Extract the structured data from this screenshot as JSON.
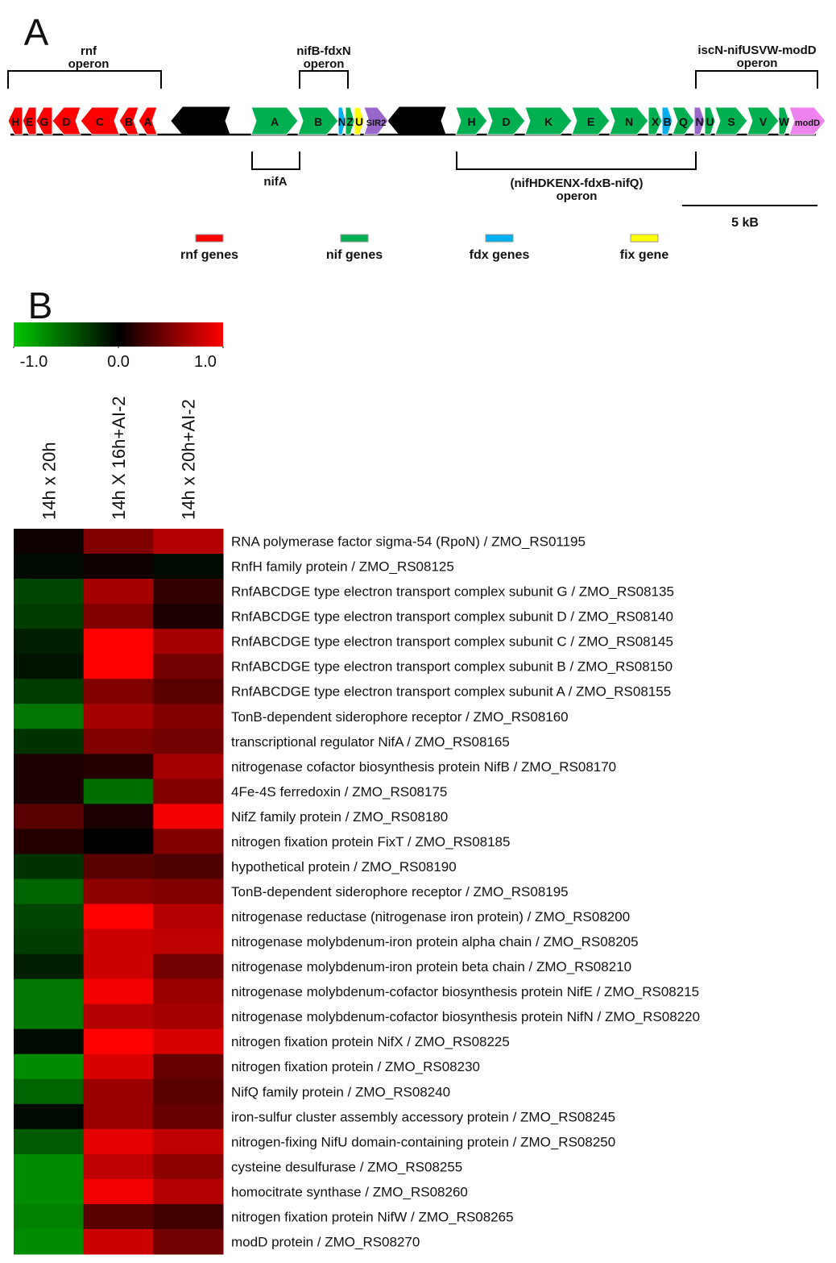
{
  "panel_a": {
    "label": "A",
    "operon_labels": [
      [
        "rnf",
        "operon"
      ],
      [
        "nifB-fdxN",
        "operon"
      ],
      [
        "iscN-nifUSVW-modD",
        "operon"
      ],
      [
        "nifA"
      ],
      [
        "(nifHDKENX-fdxB-nifQ)",
        "operon"
      ]
    ],
    "genes": [
      "H",
      "E",
      "G",
      "D",
      "C",
      "B",
      "A",
      "A",
      "B",
      "N",
      "Z",
      "U",
      "SIR2",
      "H",
      "D",
      "K",
      "E",
      "N",
      "X",
      "B",
      "Q",
      "N",
      "U",
      "S",
      "V",
      "W",
      "modD"
    ],
    "scale_bar": "5 kB",
    "legend": [
      {
        "name": "rnf genes",
        "color": "#ff0000"
      },
      {
        "name": "nif genes",
        "color": "#00b050"
      },
      {
        "name": "fdx genes",
        "color": "#00b0f0"
      },
      {
        "name": "fix gene",
        "color": "#ffff00"
      }
    ]
  },
  "chart_data": {
    "type": "heatmap",
    "panel_label": "B",
    "x_categories": [
      "14h x 20h",
      "14h X 16h+AI-2",
      "14h x 20h+AI-2"
    ],
    "y_categories": [
      "RNA polymerase factor sigma-54 (RpoN) / ZMO_RS01195",
      "RnfH family protein / ZMO_RS08125",
      "RnfABCDGE type electron transport complex subunit G / ZMO_RS08135",
      "RnfABCDGE type electron transport complex subunit D / ZMO_RS08140",
      "RnfABCDGE type electron transport complex subunit C / ZMO_RS08145",
      "RnfABCDGE type electron transport complex subunit B / ZMO_RS08150",
      "RnfABCDGE type electron transport complex subunit A / ZMO_RS08155",
      "TonB-dependent siderophore receptor / ZMO_RS08160",
      "transcriptional regulator NifA / ZMO_RS08165",
      "nitrogenase cofactor biosynthesis protein NifB / ZMO_RS08170",
      "4Fe-4S ferredoxin / ZMO_RS08175",
      "NifZ family protein / ZMO_RS08180",
      "nitrogen fixation protein FixT / ZMO_RS08185",
      "hypothetical protein / ZMO_RS08190",
      "TonB-dependent siderophore receptor / ZMO_RS08195",
      "nitrogenase reductase (nitrogenase iron protein) / ZMO_RS08200",
      "nitrogenase molybdenum-iron protein alpha chain / ZMO_RS08205",
      "nitrogenase molybdenum-iron protein beta chain / ZMO_RS08210",
      "nitrogenase molybdenum-cofactor biosynthesis protein NifE / ZMO_RS08215",
      "nitrogenase molybdenum-cofactor biosynthesis protein NifN / ZMO_RS08220",
      "nitrogen fixation protein NifX / ZMO_RS08225",
      "nitrogen fixation protein / ZMO_RS08230",
      "NifQ family protein / ZMO_RS08240",
      "iron-sulfur cluster assembly accessory protein / ZMO_RS08245",
      "nitrogen-fixing NifU domain-containing protein / ZMO_RS08250",
      "cysteine desulfurase / ZMO_RS08255",
      "homocitrate synthase / ZMO_RS08260",
      "nitrogen fixation protein NifW / ZMO_RS08265",
      "modD protein / ZMO_RS08270"
    ],
    "values": [
      [
        0.05,
        0.5,
        0.7
      ],
      [
        -0.05,
        0.05,
        -0.05
      ],
      [
        -0.35,
        0.65,
        0.2
      ],
      [
        -0.3,
        0.5,
        0.1
      ],
      [
        -0.15,
        1.0,
        0.65
      ],
      [
        -0.1,
        1.0,
        0.45
      ],
      [
        -0.3,
        0.5,
        0.35
      ],
      [
        -0.6,
        0.65,
        0.5
      ],
      [
        -0.25,
        0.5,
        0.45
      ],
      [
        0.1,
        0.15,
        0.65
      ],
      [
        0.1,
        -0.55,
        0.5
      ],
      [
        0.35,
        0.1,
        0.95
      ],
      [
        0.15,
        0.0,
        0.5
      ],
      [
        -0.25,
        0.35,
        0.3
      ],
      [
        -0.5,
        0.55,
        0.5
      ],
      [
        -0.35,
        1.0,
        0.7
      ],
      [
        -0.3,
        0.8,
        0.75
      ],
      [
        -0.15,
        0.8,
        0.45
      ],
      [
        -0.6,
        0.95,
        0.6
      ],
      [
        -0.6,
        0.7,
        0.65
      ],
      [
        -0.05,
        1.0,
        0.85
      ],
      [
        -0.7,
        0.85,
        0.4
      ],
      [
        -0.5,
        0.6,
        0.35
      ],
      [
        -0.05,
        0.6,
        0.4
      ],
      [
        -0.45,
        0.9,
        0.75
      ],
      [
        -0.7,
        0.75,
        0.55
      ],
      [
        -0.7,
        0.95,
        0.7
      ],
      [
        -0.65,
        0.35,
        0.25
      ],
      [
        -0.7,
        0.8,
        0.45
      ]
    ],
    "colorscale": [
      "#00c800",
      "#000000",
      "#ff0000"
    ],
    "clim": [
      -1,
      1
    ],
    "cticks": [
      {
        "value": -1,
        "label": "-1.0"
      },
      {
        "value": 0,
        "label": "0.0"
      },
      {
        "value": 1,
        "label": "1.0"
      }
    ]
  }
}
